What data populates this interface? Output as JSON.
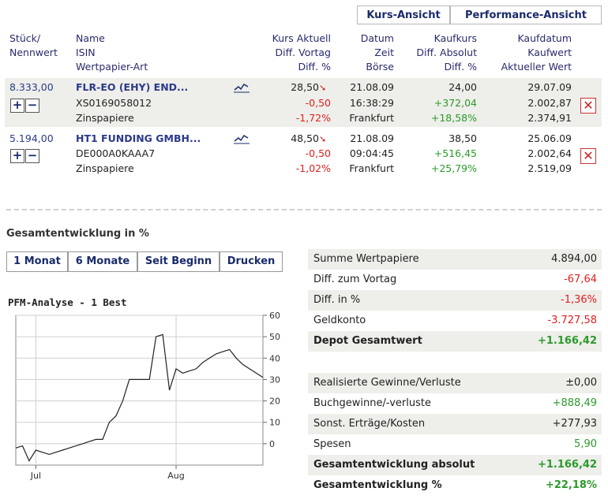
{
  "tabs": {
    "kurs": "Kurs-Ansicht",
    "performance": "Performance-Ansicht"
  },
  "headers": {
    "col1": [
      "Stück/",
      "Nennwert"
    ],
    "col2": [
      "Name",
      "ISIN",
      "Wertpapier-Art"
    ],
    "col3": [
      "Kurs Aktuell",
      "Diff. Vortag",
      "Diff. %"
    ],
    "col4": [
      "Datum",
      "Zeit",
      "Börse"
    ],
    "col5": [
      "Kaufkurs",
      "Diff. Absolut",
      "Diff. %"
    ],
    "col6": [
      "Kaufdatum",
      "Kaufwert",
      "Aktueller Wert"
    ]
  },
  "rows": [
    {
      "stueck": "8.333,00",
      "name": "FLR-EO (EHY) END...",
      "isin": "XS0169058012",
      "art": "Zinspapiere",
      "kurs": "28,50",
      "diff_vortag": "-0,50",
      "diff_pct": "-1,72%",
      "datum": "21.08.09",
      "zeit": "16:38:29",
      "boerse": "Frankfurt",
      "kaufkurs": "24,00",
      "diff_abs": "+372,04",
      "diff_abs_pct": "+18,58%",
      "kaufdatum": "29.07.09",
      "kaufwert": "2.002,87",
      "aktueller_wert": "2.374,91"
    },
    {
      "stueck": "5.194,00",
      "name": "HT1 FUNDING GMBH...",
      "isin": "DE000A0KAAA7",
      "art": "Zinspapiere",
      "kurs": "48,50",
      "diff_vortag": "-0,50",
      "diff_pct": "-1,02%",
      "datum": "21.08.09",
      "zeit": "09:04:45",
      "boerse": "Frankfurt",
      "kaufkurs": "38,50",
      "diff_abs": "+516,45",
      "diff_abs_pct": "+25,79%",
      "kaufdatum": "25.06.09",
      "kaufwert": "2.002,64",
      "aktueller_wert": "2.519,09"
    }
  ],
  "icons": {
    "plus": "plus-icon",
    "minus": "minus-icon",
    "delete": "close-icon",
    "trend": "trend-chart-icon",
    "down_arrow": "down-arrow-icon"
  },
  "section_title": "Gesamtentwicklung in %",
  "buttons": {
    "m1": "1 Monat",
    "m6": "6 Monate",
    "begin": "Seit Beginn",
    "print": "Drucken"
  },
  "colors": {
    "accent": "#1a2b6b",
    "negative": "#e02020",
    "positive": "#2b9a2b",
    "row_shade": "#eeeeea"
  },
  "summary": [
    {
      "label": "Summe Wertpapiere",
      "value": "4.894,00",
      "tone": "normal",
      "bold": false,
      "shade": true
    },
    {
      "label": "Diff. zum Vortag",
      "value": "-67,64",
      "tone": "negative",
      "bold": false,
      "shade": false
    },
    {
      "label": "Diff. in %",
      "value": "-1,36%",
      "tone": "negative",
      "bold": false,
      "shade": true
    },
    {
      "label": "Geldkonto",
      "value": "-3.727,58",
      "tone": "negative",
      "bold": false,
      "shade": false
    },
    {
      "label": "Depot Gesamtwert",
      "value": "+1.166,42",
      "tone": "positive",
      "bold": true,
      "shade": true
    }
  ],
  "summary2": [
    {
      "label": "Realisierte Gewinne/Verluste",
      "value": "±0,00",
      "tone": "normal",
      "bold": false,
      "shade": true
    },
    {
      "label": "Buchgewinne/-verluste",
      "value": "+888,49",
      "tone": "positive",
      "bold": false,
      "shade": false
    },
    {
      "label": "Sonst. Erträge/Kosten",
      "value": "+277,93",
      "tone": "normal",
      "bold": false,
      "shade": true
    },
    {
      "label": "Spesen",
      "value": "5,90",
      "tone": "positive",
      "bold": false,
      "shade": false
    },
    {
      "label": "Gesamtentwicklung absolut",
      "value": "+1.166,42",
      "tone": "positive",
      "bold": true,
      "shade": true
    },
    {
      "label": "Gesamtentwicklung %",
      "value": "+22,18%",
      "tone": "positive",
      "bold": true,
      "shade": false
    }
  ],
  "chart_data": {
    "type": "line",
    "title": "PFM-Analyse - 1 Best",
    "xlabel": "",
    "ylabel": "",
    "x_ticks": [
      "Jul",
      "Aug"
    ],
    "ylim": [
      -10,
      60
    ],
    "y_ticks": [
      0,
      10,
      20,
      30,
      40,
      50,
      60
    ],
    "grid": true,
    "series": [
      {
        "values": [
          -2,
          -1,
          -8,
          -3,
          -4,
          -5,
          -4,
          -3,
          -2,
          -1,
          0,
          1,
          2,
          2,
          10,
          13,
          20,
          30,
          30,
          30,
          30,
          50,
          51,
          25,
          35,
          33,
          34,
          35,
          38,
          40,
          42,
          43,
          44,
          40,
          37,
          35,
          33,
          31
        ]
      }
    ]
  }
}
